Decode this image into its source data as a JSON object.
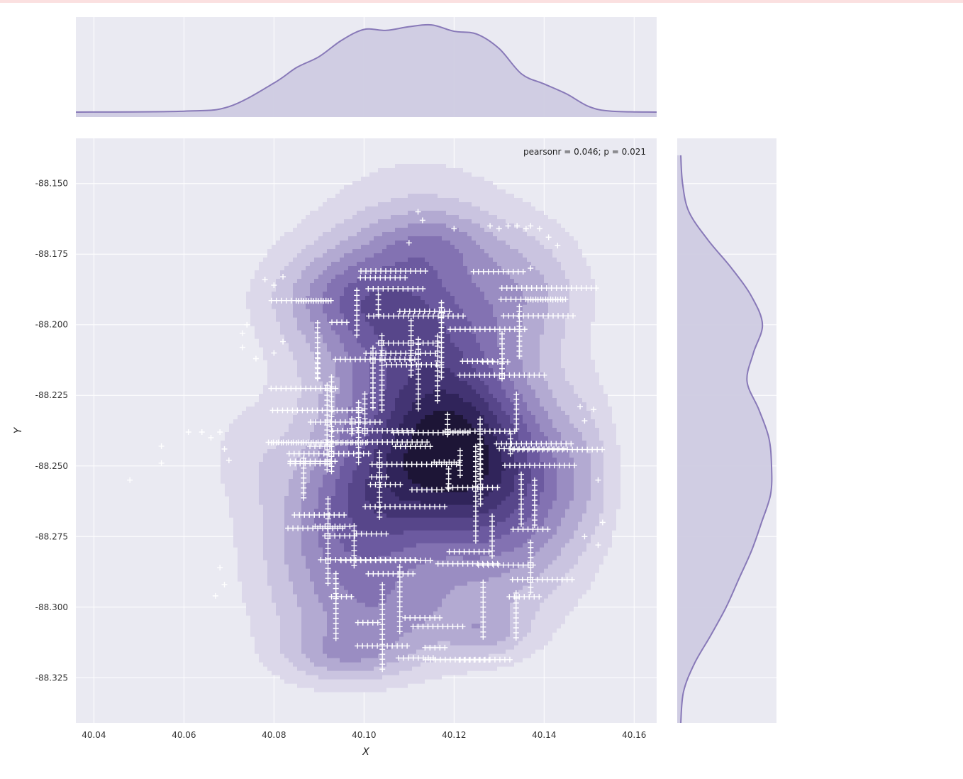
{
  "chart_data": {
    "type": "scatter",
    "kind": "jointplot-kde",
    "xlabel": "X",
    "ylabel": "Y",
    "xlim": [
      40.036,
      40.165
    ],
    "ylim": [
      -88.341,
      -88.134
    ],
    "x_ticks": [
      "40.04",
      "40.06",
      "40.08",
      "40.10",
      "40.12",
      "40.14",
      "40.16"
    ],
    "x_tick_values": [
      40.04,
      40.06,
      40.08,
      40.1,
      40.12,
      40.14,
      40.16
    ],
    "y_ticks": [
      "-88.150",
      "-88.175",
      "-88.200",
      "-88.225",
      "-88.250",
      "-88.275",
      "-88.300",
      "-88.325"
    ],
    "y_tick_values": [
      -88.15,
      -88.175,
      -88.2,
      -88.225,
      -88.25,
      -88.275,
      -88.3,
      -88.325
    ],
    "annotation": "pearsonr = 0.046; p = 0.021",
    "annotation_position": "top-right",
    "grid": true,
    "colors": {
      "background": "#eaeaf2",
      "grid": "#ffffff",
      "kde_line": "#8879b8",
      "kde_fill": "#cfcbe2",
      "marker": "#ffffff",
      "contour_levels": [
        "#dcd8ea",
        "#cac4e0",
        "#b3aad2",
        "#9a8dc2",
        "#8372b2",
        "#6c5aa0",
        "#57468a",
        "#433473",
        "#30245a",
        "#1d1536"
      ]
    },
    "marker": "+",
    "marginal_x": {
      "x": [
        40.036,
        40.06,
        40.07,
        40.08,
        40.085,
        40.09,
        40.095,
        40.1,
        40.105,
        40.11,
        40.115,
        40.12,
        40.125,
        40.13,
        40.135,
        40.14,
        40.145,
        40.15,
        40.155,
        40.165
      ],
      "density": [
        0.0,
        0.01,
        0.06,
        0.32,
        0.49,
        0.61,
        0.79,
        0.91,
        0.9,
        0.94,
        0.96,
        0.89,
        0.86,
        0.7,
        0.42,
        0.31,
        0.2,
        0.06,
        0.01,
        0.0
      ]
    },
    "marginal_y": {
      "y": [
        -88.341,
        -88.33,
        -88.32,
        -88.31,
        -88.3,
        -88.29,
        -88.28,
        -88.27,
        -88.26,
        -88.25,
        -88.24,
        -88.23,
        -88.22,
        -88.21,
        -88.2,
        -88.19,
        -88.18,
        -88.17,
        -88.16,
        -88.15,
        -88.14
      ],
      "density": [
        0.0,
        0.03,
        0.15,
        0.33,
        0.5,
        0.64,
        0.78,
        0.89,
        0.99,
        1.0,
        0.97,
        0.86,
        0.73,
        0.8,
        0.9,
        0.78,
        0.56,
        0.3,
        0.09,
        0.02,
        0.0
      ]
    },
    "kde_centers": [
      {
        "x": 40.112,
        "y": -88.205,
        "sx": 0.016,
        "sy": 0.032,
        "w": 1.0
      },
      {
        "x": 40.121,
        "y": -88.246,
        "sx": 0.012,
        "sy": 0.02,
        "w": 1.05
      },
      {
        "x": 40.103,
        "y": -88.262,
        "sx": 0.011,
        "sy": 0.021,
        "w": 0.55
      },
      {
        "x": 40.093,
        "y": -88.278,
        "sx": 0.013,
        "sy": 0.025,
        "w": 0.55
      },
      {
        "x": 40.13,
        "y": -88.272,
        "sx": 0.011,
        "sy": 0.024,
        "w": 0.55
      },
      {
        "x": 40.095,
        "y": -88.19,
        "sx": 0.012,
        "sy": 0.013,
        "w": 0.45
      },
      {
        "x": 40.137,
        "y": -88.187,
        "sx": 0.009,
        "sy": 0.015,
        "w": 0.3
      },
      {
        "x": 40.143,
        "y": -88.255,
        "sx": 0.008,
        "sy": 0.022,
        "w": 0.3
      },
      {
        "x": 40.108,
        "y": -88.305,
        "sx": 0.015,
        "sy": 0.012,
        "w": 0.4
      },
      {
        "x": 40.095,
        "y": -88.318,
        "sx": 0.01,
        "sy": 0.007,
        "w": 0.35
      },
      {
        "x": 40.127,
        "y": -88.31,
        "sx": 0.006,
        "sy": 0.006,
        "w": 0.25
      },
      {
        "x": 40.073,
        "y": -88.245,
        "sx": 0.006,
        "sy": 0.013,
        "w": 0.15
      },
      {
        "x": 40.115,
        "y": -88.17,
        "sx": 0.009,
        "sy": 0.008,
        "w": 0.25
      },
      {
        "x": 40.15,
        "y": -88.25,
        "sx": 0.004,
        "sy": 0.02,
        "w": 0.12
      }
    ],
    "points": [
      [
        40.048,
        -88.255
      ],
      [
        40.055,
        -88.243
      ],
      [
        40.055,
        -88.249
      ],
      [
        40.061,
        -88.238
      ],
      [
        40.064,
        -88.238
      ],
      [
        40.066,
        -88.24
      ],
      [
        40.068,
        -88.238
      ],
      [
        40.069,
        -88.244
      ],
      [
        40.07,
        -88.248
      ],
      [
        40.068,
        -88.286
      ],
      [
        40.069,
        -88.292
      ],
      [
        40.067,
        -88.296
      ],
      [
        40.073,
        -88.203
      ],
      [
        40.073,
        -88.208
      ],
      [
        40.074,
        -88.2
      ],
      [
        40.076,
        -88.212
      ],
      [
        40.08,
        -88.21
      ],
      [
        40.082,
        -88.206
      ],
      [
        40.078,
        -88.184
      ],
      [
        40.08,
        -88.186
      ],
      [
        40.082,
        -88.183
      ],
      [
        40.148,
        -88.229
      ],
      [
        40.149,
        -88.234
      ],
      [
        40.151,
        -88.23
      ],
      [
        40.152,
        -88.255
      ],
      [
        40.153,
        -88.27
      ],
      [
        40.152,
        -88.278
      ],
      [
        40.149,
        -88.275
      ],
      [
        40.137,
        -88.165
      ],
      [
        40.139,
        -88.166
      ],
      [
        40.141,
        -88.169
      ],
      [
        40.143,
        -88.172
      ],
      [
        40.137,
        -88.18
      ],
      [
        40.112,
        -88.16
      ],
      [
        40.113,
        -88.163
      ],
      [
        40.12,
        -88.166
      ],
      [
        40.128,
        -88.165
      ],
      [
        40.13,
        -88.166
      ],
      [
        40.132,
        -88.165
      ],
      [
        40.134,
        -88.165
      ],
      [
        40.136,
        -88.166
      ],
      [
        40.11,
        -88.171
      ]
    ]
  }
}
